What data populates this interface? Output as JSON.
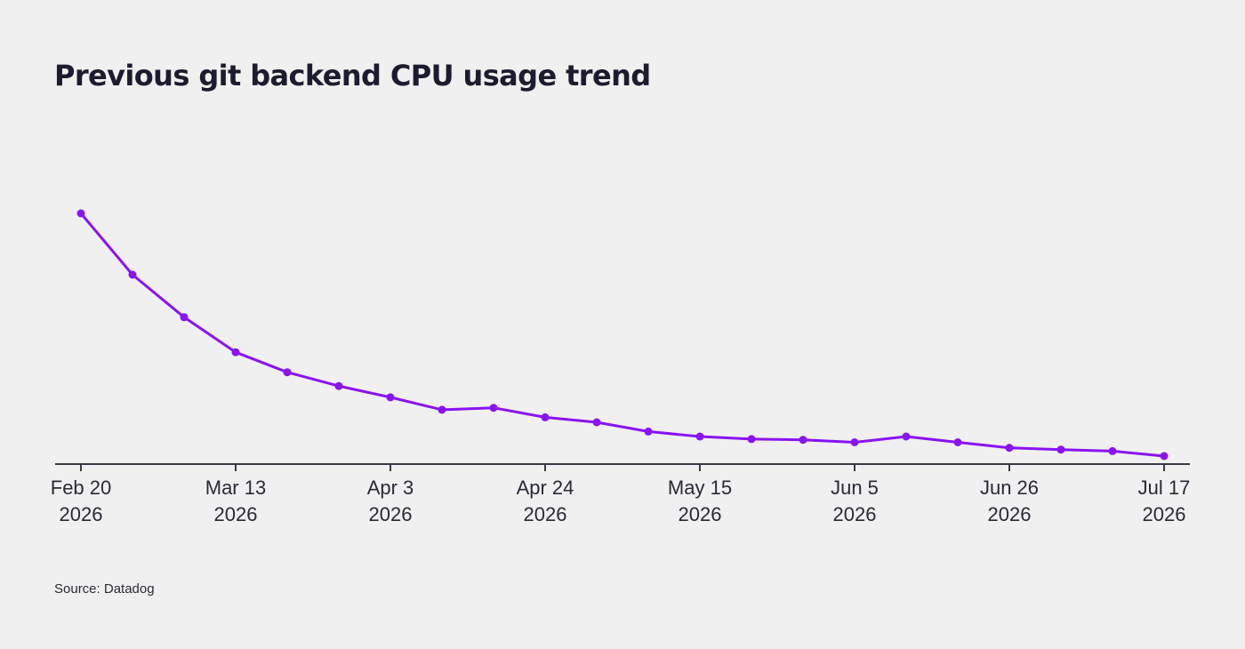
{
  "colors": {
    "background": "#f0f0f0",
    "series": "#8a13f2",
    "axis": "#3a3a44",
    "text": "#1c1c2e"
  },
  "chart_data": {
    "type": "line",
    "title": "Previous git backend CPU usage trend",
    "xlabel": "",
    "ylabel": "",
    "y_axis_labels_shown": false,
    "grid": false,
    "x": [
      "2026-02-20",
      "2026-02-27",
      "2026-03-06",
      "2026-03-13",
      "2026-03-20",
      "2026-03-27",
      "2026-04-03",
      "2026-04-10",
      "2026-04-17",
      "2026-04-24",
      "2026-05-01",
      "2026-05-08",
      "2026-05-15",
      "2026-05-22",
      "2026-05-29",
      "2026-06-05",
      "2026-06-12",
      "2026-06-19",
      "2026-06-26",
      "2026-07-03",
      "2026-07-10",
      "2026-07-17"
    ],
    "series": [
      {
        "name": "",
        "values": [
          100,
          75.5,
          58.5,
          44.5,
          36.5,
          31.0,
          26.5,
          21.5,
          22.3,
          18.5,
          16.5,
          12.8,
          10.8,
          9.8,
          9.5,
          8.5,
          10.8,
          8.5,
          6.3,
          5.6,
          5.0,
          3.0
        ]
      }
    ],
    "ylim": [
      0,
      100
    ],
    "x_ticks": [
      {
        "date": "2026-02-20",
        "line1": "Feb 20",
        "line2": "2026"
      },
      {
        "date": "2026-03-13",
        "line1": "Mar 13",
        "line2": "2026"
      },
      {
        "date": "2026-04-03",
        "line1": "Apr 3",
        "line2": "2026"
      },
      {
        "date": "2026-04-24",
        "line1": "Apr 24",
        "line2": "2026"
      },
      {
        "date": "2026-05-15",
        "line1": "May 15",
        "line2": "2026"
      },
      {
        "date": "2026-06-05",
        "line1": "Jun 5",
        "line2": "2026"
      },
      {
        "date": "2026-06-26",
        "line1": "Jun 26",
        "line2": "2026"
      },
      {
        "date": "2026-07-17",
        "line1": "Jul 17",
        "line2": "2026"
      }
    ]
  },
  "source": "Source: Datadog"
}
